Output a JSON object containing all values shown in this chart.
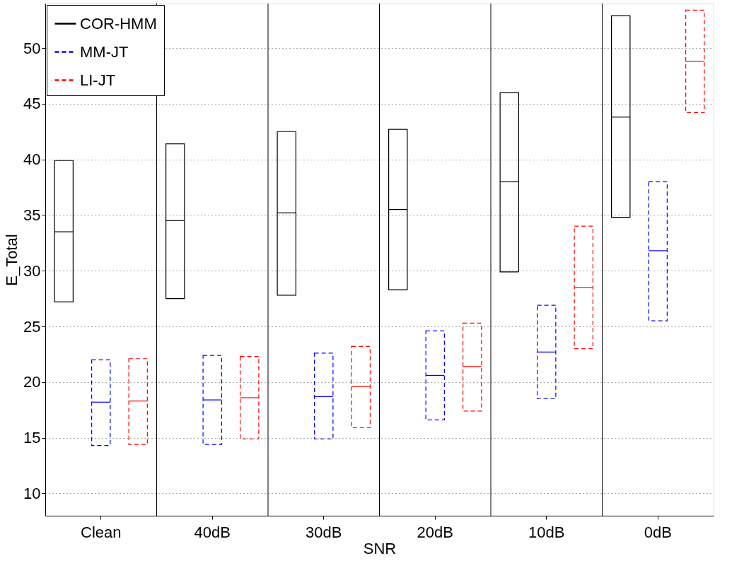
{
  "chart_data": {
    "type": "box",
    "xlabel": "SNR",
    "ylabel": "E_Total",
    "categories": [
      "Clean",
      "40dB",
      "30dB",
      "20dB",
      "10dB",
      "0dB"
    ],
    "ylim": [
      8,
      54
    ],
    "yticks": [
      10,
      15,
      20,
      25,
      30,
      35,
      40,
      45,
      50
    ],
    "grid": true,
    "legend": "top left",
    "series": [
      {
        "name": "COR-HMM",
        "color": "#000000",
        "line_style": "solid",
        "boxes": [
          {
            "low": 27.2,
            "q1": 27.2,
            "median": 33.5,
            "q3": 39.9,
            "high": 39.9
          },
          {
            "low": 27.5,
            "q1": 27.5,
            "median": 34.5,
            "q3": 41.4,
            "high": 41.4
          },
          {
            "low": 27.8,
            "q1": 27.8,
            "median": 35.2,
            "q3": 42.5,
            "high": 42.5
          },
          {
            "low": 28.3,
            "q1": 28.3,
            "median": 35.5,
            "q3": 42.7,
            "high": 42.7
          },
          {
            "low": 29.9,
            "q1": 29.9,
            "median": 38.0,
            "q3": 46.0,
            "high": 46.0
          },
          {
            "low": 34.8,
            "q1": 34.8,
            "median": 43.8,
            "q3": 52.9,
            "high": 52.9
          }
        ]
      },
      {
        "name": "MM-JT",
        "color": "#0000ff",
        "line_style": "dashed",
        "boxes": [
          {
            "low": 14.3,
            "q1": 14.3,
            "median": 18.2,
            "q3": 22.0,
            "high": 22.0
          },
          {
            "low": 14.4,
            "q1": 14.4,
            "median": 18.4,
            "q3": 22.4,
            "high": 22.4
          },
          {
            "low": 14.9,
            "q1": 14.9,
            "median": 18.7,
            "q3": 22.6,
            "high": 22.6
          },
          {
            "low": 16.6,
            "q1": 16.6,
            "median": 20.6,
            "q3": 24.6,
            "high": 24.6
          },
          {
            "low": 18.5,
            "q1": 18.5,
            "median": 22.7,
            "q3": 26.9,
            "high": 26.9
          },
          {
            "low": 25.5,
            "q1": 25.5,
            "median": 31.8,
            "q3": 38.0,
            "high": 38.0
          }
        ]
      },
      {
        "name": "LI-JT",
        "color": "#ff0000",
        "line_style": "dashed",
        "boxes": [
          {
            "low": 14.4,
            "q1": 14.4,
            "median": 18.3,
            "q3": 22.1,
            "high": 22.1
          },
          {
            "low": 14.9,
            "q1": 14.9,
            "median": 18.6,
            "q3": 22.3,
            "high": 22.3
          },
          {
            "low": 15.9,
            "q1": 15.9,
            "median": 19.6,
            "q3": 23.2,
            "high": 23.2
          },
          {
            "low": 17.4,
            "q1": 17.4,
            "median": 21.4,
            "q3": 25.3,
            "high": 25.3
          },
          {
            "low": 23.0,
            "q1": 23.0,
            "median": 28.5,
            "q3": 34.0,
            "high": 34.0
          },
          {
            "low": 44.2,
            "q1": 44.2,
            "median": 48.8,
            "q3": 53.4,
            "high": 53.4
          }
        ]
      }
    ]
  }
}
